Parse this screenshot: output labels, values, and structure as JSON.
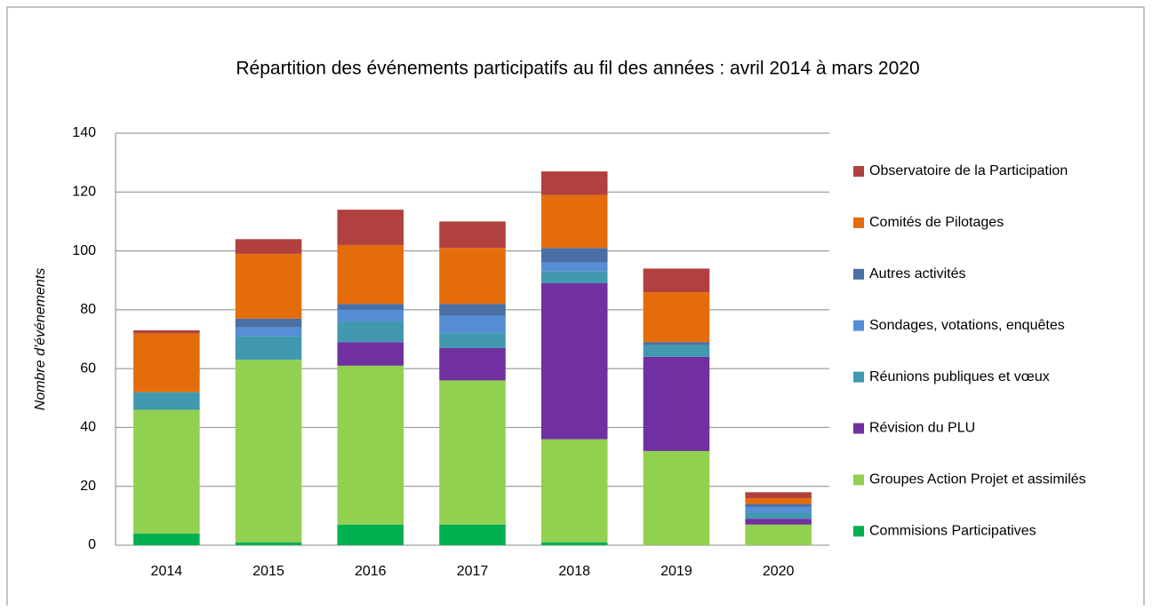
{
  "chart_data": {
    "type": "bar",
    "stacked": true,
    "title": "Répartition des événements participatifs au fil des années : avril 2014 à mars 2020",
    "y_label": "Nombre d'événements",
    "categories": [
      "2014",
      "2015",
      "2016",
      "2017",
      "2018",
      "2019",
      "2020"
    ],
    "series": [
      {
        "name": "Commisions Participatives",
        "color": "#00b050",
        "values": [
          4,
          1,
          7,
          7,
          1,
          0,
          0
        ]
      },
      {
        "name": "Groupes Action Projet et assimilés",
        "color": "#92d050",
        "values": [
          42,
          62,
          54,
          49,
          35,
          32,
          7
        ]
      },
      {
        "name": "Révision du PLU",
        "color": "#7030a0",
        "values": [
          0,
          0,
          8,
          11,
          53,
          32,
          2
        ]
      },
      {
        "name": "Réunions publiques et vœux",
        "color": "#4198af",
        "values": [
          6,
          8,
          7,
          5,
          4,
          4,
          2
        ]
      },
      {
        "name": "Sondages, votations, enquêtes",
        "color": "#558ed5",
        "values": [
          0,
          3,
          4,
          6,
          3,
          0,
          2
        ]
      },
      {
        "name": "Autres activités",
        "color": "#4a6fa5",
        "values": [
          0,
          3,
          2,
          4,
          5,
          1,
          1
        ]
      },
      {
        "name": "Comités de Pilotages",
        "color": "#e46c0a",
        "values": [
          20,
          22,
          20,
          19,
          18,
          17,
          2
        ]
      },
      {
        "name": "Observatoire de la Participation",
        "color": "#b0413e",
        "values": [
          1,
          5,
          12,
          9,
          8,
          8,
          2
        ]
      }
    ],
    "ylim": [
      0,
      140
    ],
    "yticks": [
      0,
      20,
      40,
      60,
      80,
      100,
      120,
      140
    ],
    "grid": true,
    "legend": "right"
  }
}
